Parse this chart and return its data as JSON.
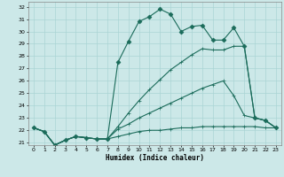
{
  "xlabel": "Humidex (Indice chaleur)",
  "background_color": "#cce8e8",
  "grid_color": "#aad4d4",
  "line_color": "#1a6b5a",
  "xlim": [
    -0.5,
    23.5
  ],
  "ylim": [
    20.8,
    32.4
  ],
  "xticks": [
    0,
    1,
    2,
    3,
    4,
    5,
    6,
    7,
    8,
    9,
    10,
    11,
    12,
    13,
    14,
    15,
    16,
    17,
    18,
    19,
    20,
    21,
    22,
    23
  ],
  "yticks": [
    21,
    22,
    23,
    24,
    25,
    26,
    27,
    28,
    29,
    30,
    31,
    32
  ],
  "series": [
    {
      "x": [
        0,
        1,
        2,
        3,
        4,
        5,
        6,
        7,
        8,
        9,
        10,
        11,
        12,
        13,
        14,
        15,
        16,
        17,
        18,
        19,
        20,
        21,
        22,
        23
      ],
      "y": [
        22.2,
        21.9,
        20.8,
        21.2,
        21.5,
        21.4,
        21.3,
        21.3,
        21.5,
        21.7,
        21.9,
        22.0,
        22.0,
        22.1,
        22.2,
        22.2,
        22.3,
        22.3,
        22.3,
        22.3,
        22.3,
        22.3,
        22.2,
        22.2
      ],
      "marker": "+"
    },
    {
      "x": [
        0,
        1,
        2,
        3,
        4,
        5,
        6,
        7,
        8,
        9,
        10,
        11,
        12,
        13,
        14,
        15,
        16,
        17,
        18,
        19,
        20,
        21,
        22,
        23
      ],
      "y": [
        22.2,
        21.9,
        20.8,
        21.2,
        21.5,
        21.4,
        21.3,
        21.3,
        27.5,
        29.2,
        30.8,
        31.2,
        31.8,
        31.4,
        30.0,
        30.4,
        30.5,
        29.3,
        29.3,
        30.3,
        28.8,
        23.0,
        22.8,
        22.2
      ],
      "marker": "D"
    },
    {
      "x": [
        0,
        1,
        2,
        3,
        4,
        5,
        6,
        7,
        8,
        9,
        10,
        11,
        12,
        13,
        14,
        15,
        16,
        17,
        18,
        19,
        20,
        21,
        22,
        23
      ],
      "y": [
        22.2,
        21.9,
        20.8,
        21.2,
        21.5,
        21.4,
        21.3,
        21.3,
        22.3,
        23.4,
        24.4,
        25.3,
        26.1,
        26.9,
        27.5,
        28.1,
        28.6,
        28.5,
        28.5,
        28.8,
        28.8,
        23.0,
        22.8,
        22.2
      ],
      "marker": "+"
    },
    {
      "x": [
        0,
        1,
        2,
        3,
        4,
        5,
        6,
        7,
        8,
        9,
        10,
        11,
        12,
        13,
        14,
        15,
        16,
        17,
        18,
        19,
        20,
        21,
        22,
        23
      ],
      "y": [
        22.2,
        21.9,
        20.8,
        21.2,
        21.5,
        21.4,
        21.3,
        21.3,
        22.1,
        22.5,
        23.0,
        23.4,
        23.8,
        24.2,
        24.6,
        25.0,
        25.4,
        25.7,
        26.0,
        24.8,
        23.2,
        23.0,
        22.8,
        22.2
      ],
      "marker": "+"
    }
  ]
}
